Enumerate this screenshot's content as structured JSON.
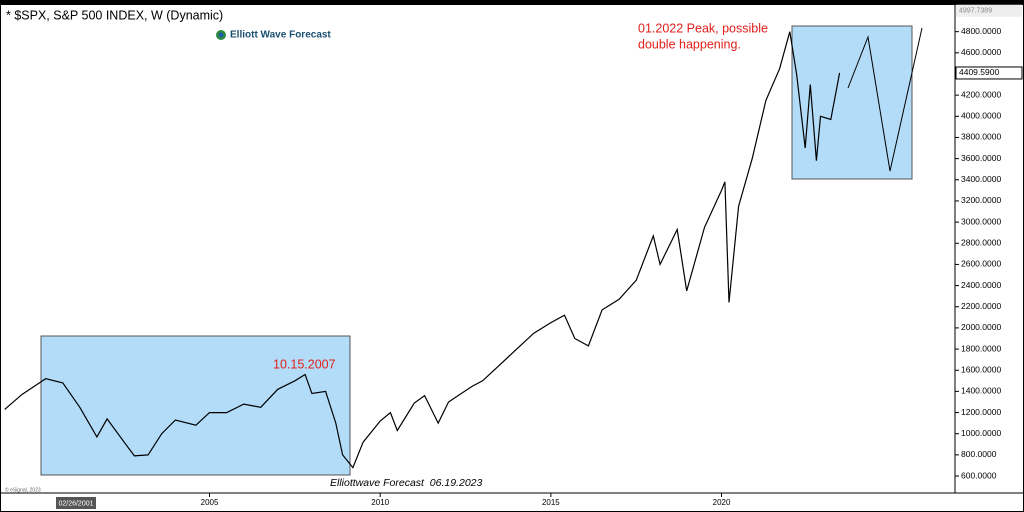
{
  "chart_data": {
    "type": "line",
    "title": "* $SPX, S&P 500 INDEX, W (Dynamic)",
    "logo": "Elliott Wave Forecast",
    "annotations": [
      "01.2022 Peak, possible",
      "double happening.",
      "10.15.2007"
    ],
    "footer": "Elliottwave Forecast  06.19.2023",
    "copyright": "© eSignal, 2023",
    "cursor_date": "02/26/2001",
    "x": [
      1999.0,
      1999.5,
      2000.2,
      2000.7,
      2001.2,
      2001.7,
      2002.0,
      2002.5,
      2002.8,
      2003.2,
      2003.6,
      2004.0,
      2004.6,
      2005.0,
      2005.5,
      2006.0,
      2006.5,
      2007.0,
      2007.5,
      2007.8,
      2008.0,
      2008.4,
      2008.7,
      2008.9,
      2009.2,
      2009.5,
      2010.0,
      2010.3,
      2010.5,
      2011.0,
      2011.3,
      2011.7,
      2012.0,
      2012.7,
      2013.0,
      2013.5,
      2014.0,
      2014.5,
      2015.0,
      2015.4,
      2015.7,
      2016.1,
      2016.5,
      2017.0,
      2017.5,
      2018.0,
      2018.2,
      2018.7,
      2018.98,
      2019.5,
      2020.0,
      2020.1,
      2020.22,
      2020.5,
      2020.9,
      2021.3,
      2021.7,
      2022.0,
      2022.2,
      2022.45,
      2022.6,
      2022.78,
      2022.9,
      2023.2,
      2023.46
    ],
    "series": [
      {
        "name": "$SPX",
        "color": "#000000",
        "values": [
          1230,
          1370,
          1520,
          1480,
          1250,
          970,
          1140,
          920,
          790,
          800,
          1000,
          1130,
          1080,
          1200,
          1200,
          1280,
          1250,
          1420,
          1500,
          1560,
          1380,
          1400,
          1100,
          800,
          680,
          920,
          1120,
          1200,
          1030,
          1290,
          1360,
          1100,
          1300,
          1450,
          1500,
          1650,
          1800,
          1950,
          2050,
          2120,
          1900,
          1830,
          2170,
          2270,
          2450,
          2870,
          2600,
          2930,
          2350,
          2950,
          3300,
          3380,
          2240,
          3150,
          3600,
          4150,
          4450,
          4800,
          4400,
          3700,
          4300,
          3580,
          4000,
          3970,
          4410
        ]
      }
    ],
    "price_labels": [
      {
        "value": 4997.7389,
        "label": "4997.7389"
      },
      {
        "value": 4409.59,
        "label": "4409.5900"
      }
    ],
    "xlim": [
      1998.92,
      2026.84
    ],
    "xticks": [
      2005,
      2010,
      2015,
      2020
    ],
    "ylim": [
      468,
      5052
    ],
    "yticks": [
      {
        "value": 600,
        "label": "600.0000"
      },
      {
        "value": 800,
        "label": "800.0000"
      },
      {
        "value": 1000,
        "label": "1000.0000"
      },
      {
        "value": 1200,
        "label": "1200.0000"
      },
      {
        "value": 1400,
        "label": "1400.0000"
      },
      {
        "value": 1600,
        "label": "1600.0000"
      },
      {
        "value": 1800,
        "label": "1800.0000"
      },
      {
        "value": 2000,
        "label": "2000.0000"
      },
      {
        "value": 2200,
        "label": "2200.0000"
      },
      {
        "value": 2400,
        "label": "2400.0000"
      },
      {
        "value": 2600,
        "label": "2600.0000"
      },
      {
        "value": 2800,
        "label": "2800.0000"
      },
      {
        "value": 3000,
        "label": "3000.0000"
      },
      {
        "value": 3200,
        "label": "3200.0000"
      },
      {
        "value": 3400,
        "label": "3400.0000"
      },
      {
        "value": 3600,
        "label": "3600.0000"
      },
      {
        "value": 3800,
        "label": "3800.0000"
      },
      {
        "value": 4000,
        "label": "4000.0000"
      },
      {
        "value": 4200,
        "label": "4200.0000"
      },
      {
        "value": 4600,
        "label": "4600.0000"
      },
      {
        "value": 4800,
        "label": "4800.0000"
      }
    ],
    "grid": false
  }
}
